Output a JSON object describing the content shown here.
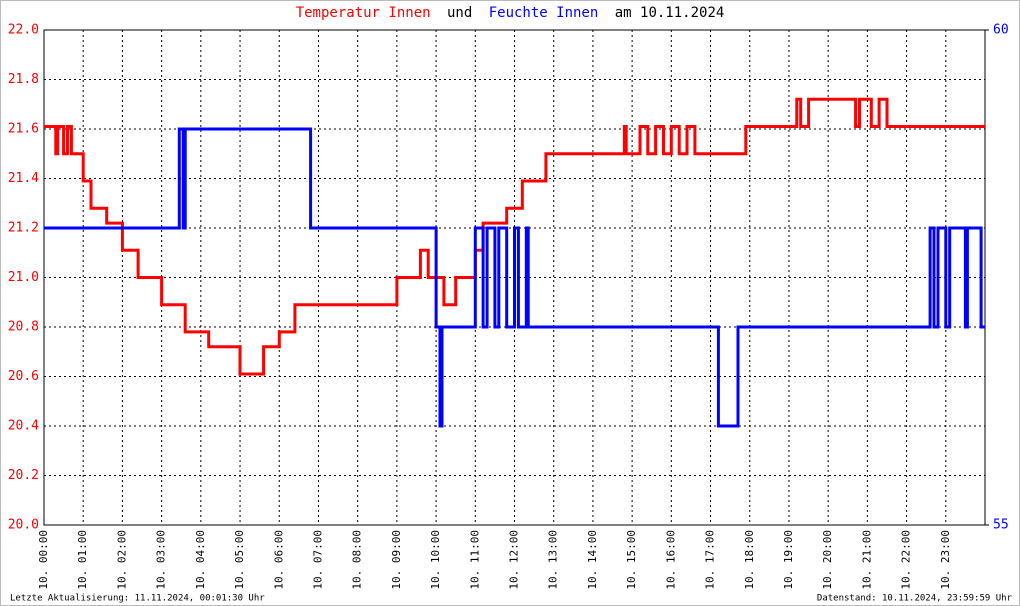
{
  "chart_data": {
    "type": "line",
    "title_join": "und",
    "title_date": "am 10.11.2024",
    "footer_left": "Letzte Aktualisierung: 11.11.2024, 00:01:30 Uhr",
    "footer_right": "Datenstand: 10.11.2024, 23:59:59 Uhr",
    "xlim": [
      0,
      24
    ],
    "xticks": [
      {
        "value": 0,
        "label": "10. 00:00"
      },
      {
        "value": 1,
        "label": "10. 01:00"
      },
      {
        "value": 2,
        "label": "10. 02:00"
      },
      {
        "value": 3,
        "label": "10. 03:00"
      },
      {
        "value": 4,
        "label": "10. 04:00"
      },
      {
        "value": 5,
        "label": "10. 05:00"
      },
      {
        "value": 6,
        "label": "10. 06:00"
      },
      {
        "value": 7,
        "label": "10. 07:00"
      },
      {
        "value": 8,
        "label": "10. 08:00"
      },
      {
        "value": 9,
        "label": "10. 09:00"
      },
      {
        "value": 10,
        "label": "10. 10:00"
      },
      {
        "value": 11,
        "label": "10. 11:00"
      },
      {
        "value": 12,
        "label": "10. 12:00"
      },
      {
        "value": 13,
        "label": "10. 13:00"
      },
      {
        "value": 14,
        "label": "10. 14:00"
      },
      {
        "value": 15,
        "label": "10. 15:00"
      },
      {
        "value": 16,
        "label": "10. 16:00"
      },
      {
        "value": 17,
        "label": "10. 17:00"
      },
      {
        "value": 18,
        "label": "10. 18:00"
      },
      {
        "value": 19,
        "label": "10. 19:00"
      },
      {
        "value": 20,
        "label": "10. 20:00"
      },
      {
        "value": 21,
        "label": "10. 21:00"
      },
      {
        "value": 22,
        "label": "10. 22:00"
      },
      {
        "value": 23,
        "label": "10. 23:00"
      }
    ],
    "ylim": [
      20,
      22
    ],
    "yticks": [
      {
        "value": 20,
        "label": "20.0"
      },
      20.2,
      20.4,
      20.6,
      20.8,
      {
        "value": 21,
        "label": "21.0"
      },
      21.2,
      21.4,
      21.6,
      21.8,
      {
        "value": 22,
        "label": "22.0"
      }
    ],
    "y2lim": [
      55,
      60
    ],
    "y2ticks": [
      55,
      60
    ],
    "grid": true,
    "series": [
      {
        "name": "Temperatur Innen",
        "color": "#ff0000",
        "x": [
          0,
          0.3,
          0.3,
          0.35,
          0.35,
          0.5,
          0.5,
          0.6,
          0.6,
          0.7,
          0.7,
          1.0,
          1.0,
          1.2,
          1.2,
          1.6,
          1.6,
          2.0,
          2.0,
          2.4,
          2.4,
          3.0,
          3.0,
          3.6,
          3.6,
          4.2,
          4.2,
          5.0,
          5.0,
          5.6,
          5.6,
          6.0,
          6.0,
          6.4,
          6.4,
          9.0,
          9.0,
          9.6,
          9.6,
          9.8,
          9.8,
          10.2,
          10.2,
          10.5,
          10.5,
          11.0,
          11.0,
          11.2,
          11.2,
          11.8,
          11.8,
          12.2,
          12.2,
          12.8,
          12.8,
          14.8,
          14.8,
          14.85,
          14.85,
          15.2,
          15.2,
          15.4,
          15.4,
          15.6,
          15.6,
          15.8,
          15.8,
          16.0,
          16.0,
          16.2,
          16.2,
          16.4,
          16.4,
          16.6,
          16.6,
          17.9,
          17.9,
          19.2,
          19.2,
          19.3,
          19.3,
          19.5,
          19.5,
          20.7,
          20.7,
          20.8,
          20.8,
          21.1,
          21.1,
          21.3,
          21.3,
          21.5,
          21.5,
          24
        ],
        "values": [
          21.61,
          21.61,
          21.5,
          21.5,
          21.61,
          21.61,
          21.5,
          21.5,
          21.61,
          21.61,
          21.5,
          21.5,
          21.39,
          21.39,
          21.28,
          21.28,
          21.22,
          21.22,
          21.11,
          21.11,
          21.0,
          21.0,
          20.89,
          20.89,
          20.78,
          20.78,
          20.72,
          20.72,
          20.61,
          20.61,
          20.72,
          20.72,
          20.78,
          20.78,
          20.89,
          20.89,
          21.0,
          21.0,
          21.11,
          21.11,
          21.0,
          21.0,
          20.89,
          20.89,
          21.0,
          21.0,
          21.11,
          21.11,
          21.22,
          21.22,
          21.28,
          21.28,
          21.39,
          21.39,
          21.5,
          21.5,
          21.61,
          21.61,
          21.5,
          21.5,
          21.61,
          21.61,
          21.5,
          21.5,
          21.61,
          21.61,
          21.5,
          21.5,
          21.61,
          21.61,
          21.5,
          21.5,
          21.61,
          21.61,
          21.5,
          21.5,
          21.61,
          21.61,
          21.72,
          21.72,
          21.61,
          21.61,
          21.72,
          21.72,
          21.61,
          21.61,
          21.72,
          21.72,
          21.61,
          21.61,
          21.72,
          21.72,
          21.61,
          21.61
        ]
      },
      {
        "name": "Feuchte Innen",
        "color": "#0000ff",
        "axis": "y2",
        "x": [
          0,
          3.45,
          3.45,
          3.55,
          3.55,
          3.6,
          3.6,
          6.8,
          6.8,
          10.0,
          10.0,
          10.1,
          10.1,
          10.15,
          10.15,
          11.0,
          11.0,
          11.2,
          11.2,
          11.3,
          11.3,
          11.5,
          11.5,
          11.6,
          11.6,
          11.8,
          11.8,
          12.0,
          12.0,
          12.1,
          12.1,
          12.3,
          12.3,
          12.35,
          12.35,
          17.2,
          17.2,
          17.7,
          17.7,
          22.6,
          22.6,
          22.7,
          22.7,
          22.8,
          22.8,
          23.0,
          23.0,
          23.1,
          23.1,
          23.5,
          23.5,
          23.55,
          23.55,
          23.9,
          23.9,
          24
        ],
        "values": [
          58,
          58,
          59,
          59,
          58,
          58,
          59,
          59,
          58,
          58,
          57,
          57,
          56,
          56,
          57,
          57,
          58,
          58,
          57,
          57,
          58,
          58,
          57,
          57,
          58,
          58,
          57,
          57,
          58,
          58,
          57,
          57,
          58,
          58,
          57,
          57,
          56,
          56,
          57,
          57,
          58,
          58,
          57,
          57,
          58,
          58,
          57,
          57,
          58,
          58,
          57,
          57,
          58,
          58,
          57,
          57
        ]
      }
    ]
  }
}
